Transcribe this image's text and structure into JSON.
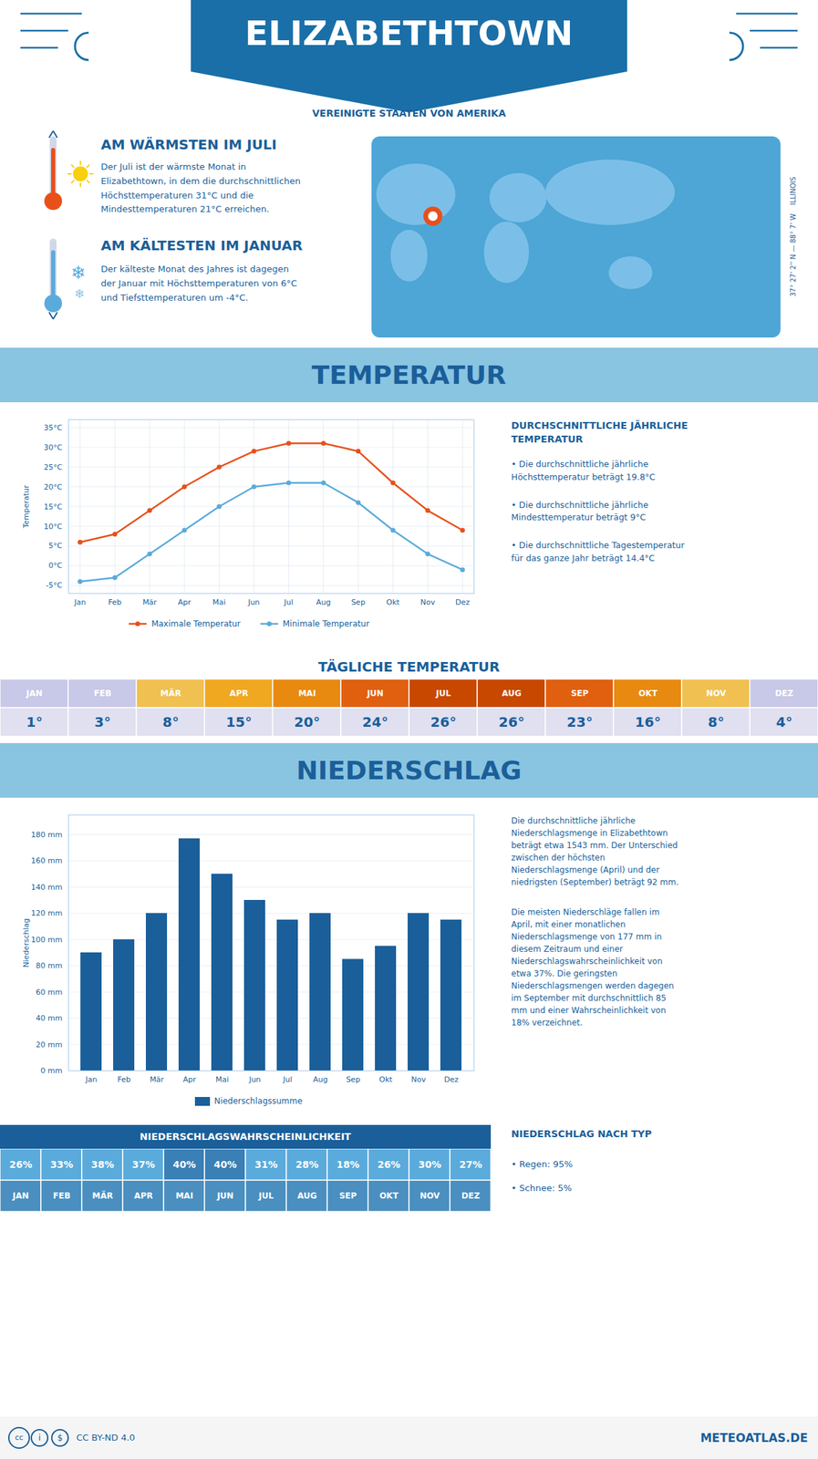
{
  "chart_data": [
    {
      "type": "line",
      "title": "TEMPERATUR",
      "categories": [
        "Jan",
        "Feb",
        "Mär",
        "Apr",
        "Mai",
        "Jun",
        "Jul",
        "Aug",
        "Sep",
        "Okt",
        "Nov",
        "Dez"
      ],
      "series": [
        {
          "name": "Maximale Temperatur",
          "color": "#e8501a",
          "marker": "circle",
          "line_style": "solid",
          "values": [
            6,
            8,
            14,
            20,
            25,
            29,
            31,
            31,
            29,
            21,
            14,
            9
          ]
        },
        {
          "name": "Minimale Temperatur",
          "color": "#5aabdb",
          "marker": "circle",
          "line_style": "solid",
          "values": [
            -4,
            -3,
            3,
            9,
            15,
            20,
            21,
            21,
            16,
            9,
            3,
            -1
          ]
        }
      ],
      "ylabel": "Temperatur",
      "ylim": [
        -7,
        37
      ],
      "yticks": [
        {
          "value": -5,
          "label": "-5°C"
        },
        {
          "value": 0,
          "label": "0°C"
        },
        {
          "value": 5,
          "label": "5°C"
        },
        {
          "value": 10,
          "label": "10°C"
        },
        {
          "value": 15,
          "label": "15°C"
        },
        {
          "value": 20,
          "label": "20°C"
        },
        {
          "value": 25,
          "label": "25°C"
        },
        {
          "value": 30,
          "label": "30°C"
        },
        {
          "value": 35,
          "label": "35°C"
        }
      ],
      "grid": true,
      "legend": "bottom",
      "annotations": [
        "ELIZABETHTOWN",
        "VEREINIGTE STAATEN VON AMERIKA",
        "AM WÄRMSTEN IM JULI",
        "Der Juli ist der wärmste Monat in\nElizabethtown, in dem die durchschnittlichen\nHöchsttemperaturen 31°C und die\nMindesttemperaturen 21°C erreichen.",
        "AM KÄLTESTEN IM JANUAR",
        "Der kälteste Monat des Jahres ist dagegen\nder Januar mit Höchsttemperaturen von 6°C\nund Tiefsttemperaturen um -4°C.",
        "❄",
        "❄",
        "37° 27' 2'' N — 88° 7' W    ILLINOIS",
        "DURCHSCHNITTLICHE JÄHRLICHE\nTEMPERATUR",
        "• Die durchschnittliche jährliche\nHöchsttemperatur beträgt 19.8°C",
        "• Die durchschnittliche jährliche\nMindesttemperatur beträgt 9°C",
        "• Die durchschnittliche Tagestemperatur\nfür das ganze Jahr beträgt 14.4°C"
      ]
    },
    {
      "type": "table",
      "title": "TÄGLICHE TEMPERATUR",
      "categories": [
        "JAN",
        "FEB",
        "MÄR",
        "APR",
        "MAI",
        "JUN",
        "JUL",
        "AUG",
        "SEP",
        "OKT",
        "NOV",
        "DEZ"
      ],
      "values": [
        1,
        3,
        8,
        15,
        20,
        24,
        26,
        26,
        23,
        16,
        8,
        4
      ],
      "value_labels": [
        "1°",
        "3°",
        "8°",
        "15°",
        "20°",
        "24°",
        "26°",
        "26°",
        "23°",
        "16°",
        "8°",
        "4°"
      ],
      "colors": [
        "#c8c8e8",
        "#c8c8e8",
        "#f0c050",
        "#f0a820",
        "#e88a10",
        "#e06010",
        "#c84800",
        "#c84800",
        "#e06010",
        "#e88a10",
        "#f0c050",
        "#c8c8e8"
      ],
      "data_labels": true
    },
    {
      "type": "bar",
      "title": "NIEDERSCHLAG",
      "categories": [
        "Jan",
        "Feb",
        "Mär",
        "Apr",
        "Mai",
        "Jun",
        "Jul",
        "Aug",
        "Sep",
        "Okt",
        "Nov",
        "Dez"
      ],
      "series": [
        {
          "name": "Niederschlagssumme",
          "color": "#1a5f9a",
          "values": [
            90,
            100,
            120,
            177,
            150,
            130,
            115,
            120,
            85,
            95,
            120,
            115
          ]
        }
      ],
      "ylabel": "Niederschlag",
      "ylim": [
        0,
        195
      ],
      "yticks": [
        {
          "value": 0,
          "label": "0 mm"
        },
        {
          "value": 20,
          "label": "20 mm"
        },
        {
          "value": 40,
          "label": "40 mm"
        },
        {
          "value": 60,
          "label": "60 mm"
        },
        {
          "value": 80,
          "label": "80 mm"
        },
        {
          "value": 100,
          "label": "100 mm"
        },
        {
          "value": 120,
          "label": "120 mm"
        },
        {
          "value": 140,
          "label": "140 mm"
        },
        {
          "value": 160,
          "label": "160 mm"
        },
        {
          "value": 180,
          "label": "180 mm"
        }
      ],
      "grid": "y",
      "legend": "bottom",
      "annotations": [
        "Die durchschnittliche jährliche\nNiederschlagsmenge in Elizabethtown\nbeträgt etwa 1543 mm. Der Unterschied\nzwischen der höchsten\nNiederschlagsmenge (April) und der\nniedrigsten (September) beträgt 92 mm.",
        "Die meisten Niederschläge fallen im\nApril, mit einer monatlichen\nNiederschlagsmenge von 177 mm in\ndiesem Zeitraum und einer\nNiederschlagswahrscheinlichkeit von\netwa 37%. Die geringsten\nNiederschlagsmengen werden dagegen\nim September mit durchschnittlich 85\nmm und einer Wahrscheinlichkeit von\n18% verzeichnet."
      ]
    },
    {
      "type": "table",
      "title": "NIEDERSCHLAGSWAHRSCHEINLICHKEIT",
      "categories": [
        "JAN",
        "FEB",
        "MÄR",
        "APR",
        "MAI",
        "JUN",
        "JUL",
        "AUG",
        "SEP",
        "OKT",
        "NOV",
        "DEZ"
      ],
      "values": [
        26,
        33,
        38,
        37,
        40,
        40,
        31,
        28,
        18,
        26,
        30,
        27
      ],
      "value_labels": [
        "26%",
        "33%",
        "38%",
        "37%",
        "40%",
        "40%",
        "31%",
        "28%",
        "18%",
        "26%",
        "30%",
        "27%"
      ],
      "colors": [
        "#5aabdb",
        "#5aabdb",
        "#5aabdb",
        "#5aabdb",
        "#3a7fb5",
        "#3a7fb5",
        "#5aabdb",
        "#5aabdb",
        "#5aabdb",
        "#5aabdb",
        "#5aabdb",
        "#5aabdb"
      ],
      "data_labels": true,
      "annotations": [
        "NIEDERSCHLAG NACH TYP",
        "• Regen: 95%",
        "• Schnee: 5%",
        "cc",
        "i",
        "$",
        "CC BY-ND 4.0",
        "METEOATLAS.DE"
      ]
    }
  ]
}
